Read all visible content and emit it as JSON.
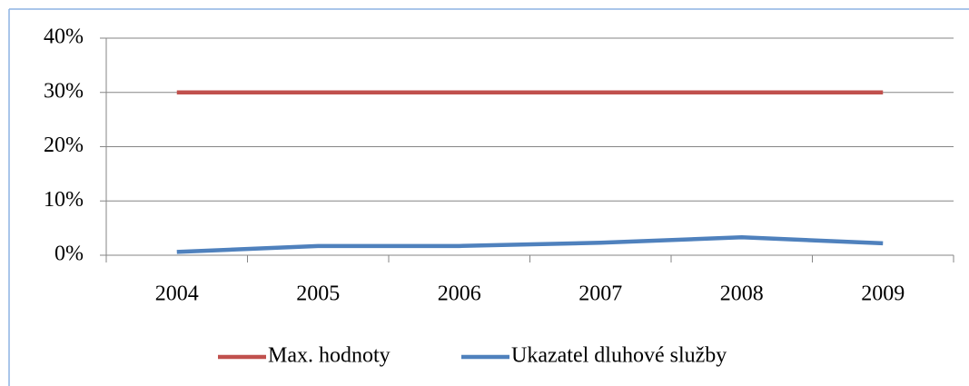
{
  "chart_data": {
    "type": "line",
    "categories": [
      "2004",
      "2005",
      "2006",
      "2007",
      "2008",
      "2009"
    ],
    "series": [
      {
        "name": "Max. hodnoty",
        "color": "#c0504d",
        "values": [
          30,
          30,
          30,
          30,
          30,
          30
        ]
      },
      {
        "name": "Ukazatel dluhové služby",
        "color": "#4f81bd",
        "values": [
          0.6,
          1.7,
          1.7,
          2.3,
          3.3,
          2.2
        ]
      }
    ],
    "ylim": [
      0,
      40
    ],
    "yticks": [
      {
        "value": 0,
        "label": "0%"
      },
      {
        "value": 10,
        "label": "10%"
      },
      {
        "value": 20,
        "label": "20%"
      },
      {
        "value": 30,
        "label": "30%"
      },
      {
        "value": 40,
        "label": "40%"
      }
    ],
    "grid": true,
    "legend": "bottom"
  }
}
